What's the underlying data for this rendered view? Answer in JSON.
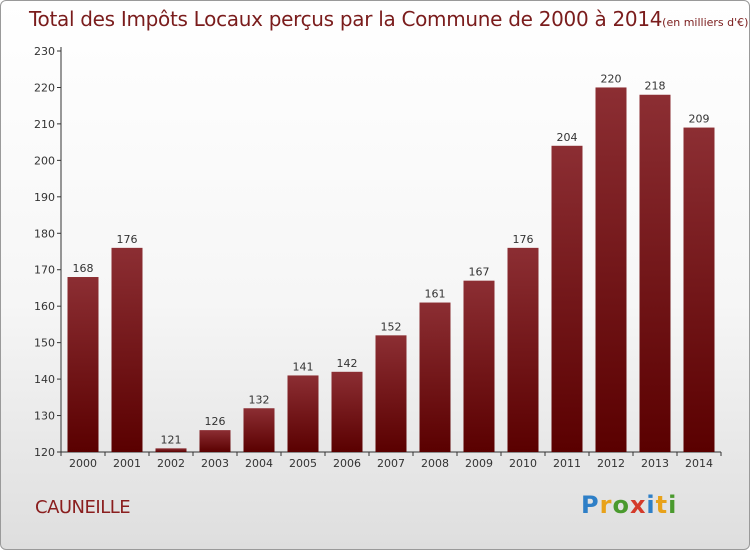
{
  "chart_data": {
    "type": "bar",
    "title": "Total des Impôts Locaux perçus par la Commune de 2000 à 2014",
    "unit_note": "(en milliers d'€)",
    "categories": [
      "2000",
      "2001",
      "2002",
      "2003",
      "2004",
      "2005",
      "2006",
      "2007",
      "2008",
      "2009",
      "2010",
      "2011",
      "2012",
      "2013",
      "2014"
    ],
    "values": [
      168,
      176,
      121,
      126,
      132,
      141,
      142,
      152,
      161,
      167,
      176,
      204,
      220,
      218,
      209
    ],
    "xlabel": "",
    "ylabel": "",
    "ylim": [
      120,
      230
    ],
    "yticks": [
      120,
      130,
      140,
      150,
      160,
      170,
      180,
      190,
      200,
      210,
      220,
      230
    ],
    "grid": false,
    "data_labels": true,
    "bar_color": "#7a1e22"
  },
  "footer": {
    "commune": "CAUNEILLE",
    "brand": "Proxiti"
  }
}
